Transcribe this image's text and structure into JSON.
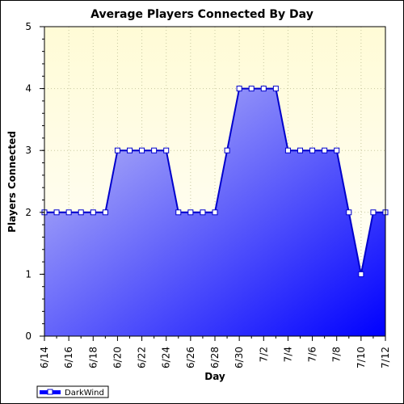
{
  "chart_data": {
    "type": "area",
    "title": "Average Players Connected By Day",
    "xlabel": "Day",
    "ylabel": "Players Connected",
    "ylim": [
      0,
      5
    ],
    "yticks": [
      "0",
      "1",
      "2",
      "3",
      "4",
      "5"
    ],
    "xtick_labels": [
      "6/14",
      "6/16",
      "6/18",
      "6/20",
      "6/22",
      "6/24",
      "6/26",
      "6/28",
      "6/30",
      "7/2",
      "7/4",
      "7/6",
      "7/8",
      "7/10",
      "7/12"
    ],
    "x": [
      "6/14",
      "6/15",
      "6/16",
      "6/17",
      "6/18",
      "6/19",
      "6/20",
      "6/21",
      "6/22",
      "6/23",
      "6/24",
      "6/25",
      "6/26",
      "6/27",
      "6/28",
      "6/29",
      "6/30",
      "7/1",
      "7/2",
      "7/3",
      "7/4",
      "7/5",
      "7/6",
      "7/7",
      "7/8",
      "7/9",
      "7/10",
      "7/11",
      "7/12"
    ],
    "series": [
      {
        "name": "DarkWind",
        "values": [
          2,
          2,
          2,
          2,
          2,
          2,
          3,
          3,
          3,
          3,
          3,
          2,
          2,
          2,
          2,
          3,
          4,
          4,
          4,
          4,
          3,
          3,
          3,
          3,
          3,
          2,
          1,
          2,
          2
        ]
      }
    ],
    "grid": true,
    "legend_position": "bottom-left",
    "colors": {
      "plot_bg_top": "#fffbd6",
      "plot_bg_bottom": "#ffffff",
      "fill_light": "#c8c8f6",
      "fill_dark": "#0000ff",
      "line": "#0000cc",
      "marker_fill": "#ffffff",
      "grid": "#c8c8a0"
    }
  }
}
